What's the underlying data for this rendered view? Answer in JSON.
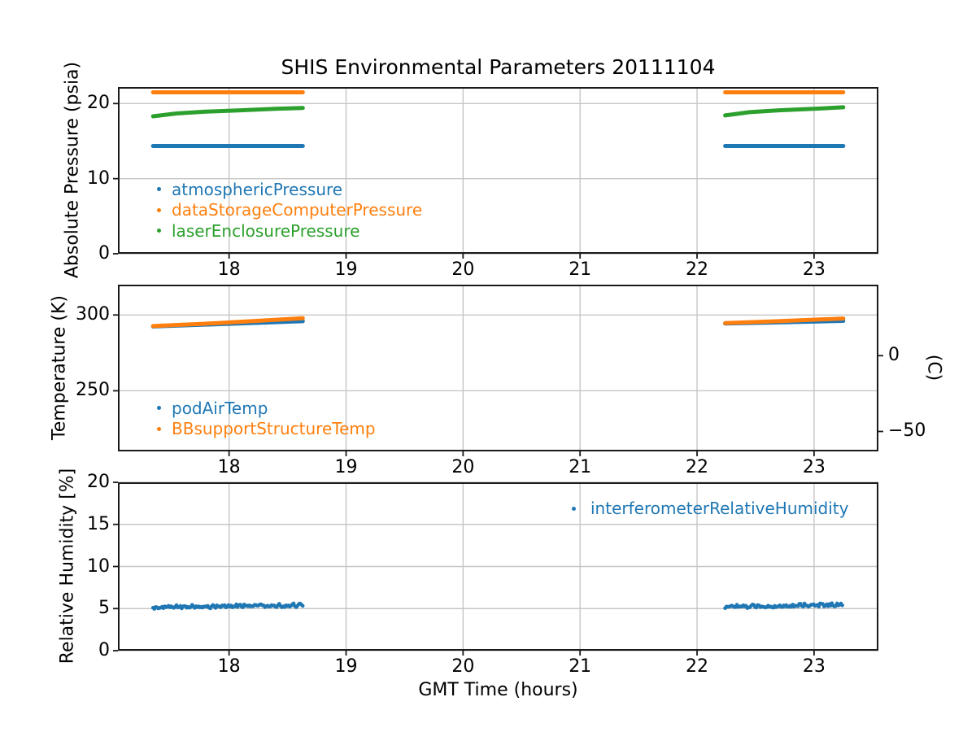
{
  "figure": {
    "title": "SHIS Environmental Parameters 20111104",
    "xlabel": "GMT Time (hours)",
    "colors": {
      "background": "#ffffff",
      "grid": "#c6c6c6",
      "axis": "#1a1a1a",
      "text": "#000000",
      "series_blue": "#1f77b4",
      "series_orange": "#ff7f0e",
      "series_green": "#2ca02c"
    }
  },
  "chart_data": [
    {
      "type": "line",
      "ylabel": "Absolute Pressure (psia)",
      "xlim": [
        17.05,
        23.55
      ],
      "ylim": [
        0,
        22.2
      ],
      "xticks": [
        18,
        19,
        20,
        21,
        22,
        23
      ],
      "yticks": [
        0,
        10,
        20
      ],
      "grid": true,
      "legend_position": "lower-left-inside",
      "series": [
        {
          "name": "atmosphericPressure",
          "color": "#1f77b4",
          "segments": [
            [
              [
                17.35,
                14.35
              ],
              [
                18.63,
                14.35
              ]
            ],
            [
              [
                22.24,
                14.35
              ],
              [
                23.25,
                14.35
              ]
            ]
          ]
        },
        {
          "name": "dataStorageComputerPressure",
          "color": "#ff7f0e",
          "segments": [
            [
              [
                17.35,
                21.5
              ],
              [
                18.63,
                21.5
              ]
            ],
            [
              [
                22.24,
                21.5
              ],
              [
                23.25,
                21.5
              ]
            ]
          ]
        },
        {
          "name": "laserEnclosurePressure",
          "color": "#2ca02c",
          "segments": [
            [
              [
                17.35,
                18.3
              ],
              [
                17.55,
                18.68
              ],
              [
                17.8,
                18.92
              ],
              [
                18.1,
                19.1
              ],
              [
                18.4,
                19.3
              ],
              [
                18.63,
                19.42
              ]
            ],
            [
              [
                22.24,
                18.42
              ],
              [
                22.45,
                18.85
              ],
              [
                22.7,
                19.1
              ],
              [
                23.0,
                19.3
              ],
              [
                23.25,
                19.5
              ]
            ]
          ]
        }
      ]
    },
    {
      "type": "line",
      "ylabel": "Temperature (K)",
      "ylabel_right": "(C)",
      "xlim": [
        17.05,
        23.55
      ],
      "ylim": [
        210,
        320
      ],
      "xticks": [
        18,
        19,
        20,
        21,
        22,
        23
      ],
      "yticks": [
        250,
        300
      ],
      "yticks_right": [
        {
          "label": "0",
          "kelvin": 273.15
        },
        {
          "label": "−50",
          "kelvin": 223.15
        }
      ],
      "grid": true,
      "legend_position": "lower-left-inside",
      "series": [
        {
          "name": "podAirTemp",
          "color": "#1f77b4",
          "segments": [
            [
              [
                17.35,
                292.4
              ],
              [
                17.9,
                293.9
              ],
              [
                18.3,
                295.0
              ],
              [
                18.63,
                295.9
              ]
            ],
            [
              [
                22.24,
                294.4
              ],
              [
                22.7,
                295.1
              ],
              [
                23.25,
                296.1
              ]
            ]
          ]
        },
        {
          "name": "BBsupportStructureTemp",
          "color": "#ff7f0e",
          "segments": [
            [
              [
                17.35,
                292.7
              ],
              [
                17.9,
                294.6
              ],
              [
                18.3,
                296.4
              ],
              [
                18.63,
                297.9
              ]
            ],
            [
              [
                22.24,
                294.6
              ],
              [
                22.7,
                295.9
              ],
              [
                23.25,
                297.7
              ]
            ]
          ]
        }
      ]
    },
    {
      "type": "scatter",
      "ylabel": "Relative Humidity [%]",
      "xlim": [
        17.05,
        23.55
      ],
      "ylim": [
        0,
        20
      ],
      "xticks": [
        18,
        19,
        20,
        21,
        22,
        23
      ],
      "yticks": [
        0,
        5,
        10,
        15,
        20
      ],
      "grid": true,
      "legend_position": "upper-right-inside",
      "series": [
        {
          "name": "interferometerRelativeHumidity",
          "color": "#1f77b4",
          "jitter": 0.13,
          "segments": [
            [
              [
                17.35,
                5.1
              ],
              [
                17.8,
                5.25
              ],
              [
                18.2,
                5.32
              ],
              [
                18.63,
                5.4
              ]
            ],
            [
              [
                22.24,
                5.2
              ],
              [
                22.7,
                5.32
              ],
              [
                23.25,
                5.45
              ]
            ]
          ]
        }
      ]
    }
  ]
}
